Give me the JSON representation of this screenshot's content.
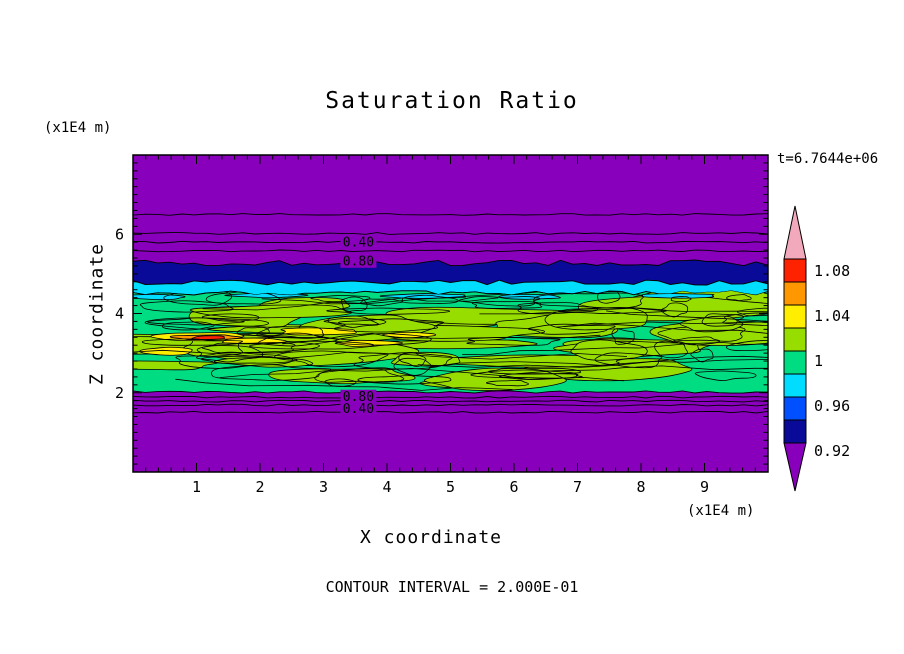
{
  "chart_data": {
    "type": "heatmap",
    "title": "Saturation Ratio",
    "xlabel": "X coordinate",
    "ylabel": "Z coordinate",
    "x_unit": "(x1E4 m)",
    "y_unit": "(x1E4 m)",
    "timestamp": "t=6.7644e+06",
    "contour_interval_label": "CONTOUR INTERVAL = 2.000E-01",
    "xlim": [
      0,
      10
    ],
    "ylim": [
      0,
      8
    ],
    "x_ticks": [
      1,
      2,
      3,
      4,
      5,
      6,
      7,
      8,
      9
    ],
    "y_ticks": [
      2,
      4,
      6
    ],
    "legend_position": "right",
    "grid": false,
    "palette": {
      "purple": "#8800bb",
      "navy": "#0a0a99",
      "blue": "#0050ff",
      "cyan": "#00ddff",
      "spring_green": "#00dc82",
      "chartreuse": "#97de00",
      "yellow": "#ffee00",
      "orange": "#ff9800",
      "red": "#ff2200",
      "pink": "#f2a9bc"
    },
    "bands": [
      {
        "name": "upper-subsaturated-region",
        "z_from": 5.28,
        "z_to": 8.0,
        "color_key": "purple",
        "approx_value": "0.2-0.8"
      },
      {
        "name": "cloud-top-dark-band",
        "z_from": 4.78,
        "z_to": 5.28,
        "color_key": "navy",
        "approx_value": "0.92"
      },
      {
        "name": "cloud-top-cyan-band",
        "z_from": 4.52,
        "z_to": 4.78,
        "color_key": "cyan",
        "approx_value": "0.96"
      },
      {
        "name": "turbulent-cloud-band",
        "z_from": 2.02,
        "z_to": 4.52,
        "color_key": "spring_green",
        "approx_value": "1.00"
      },
      {
        "name": "lower-subsaturated-region",
        "z_from": 0.0,
        "z_to": 2.02,
        "color_key": "purple",
        "approx_value": "0.2-0.8"
      }
    ],
    "contour_lines": [
      {
        "z": 6.5
      },
      {
        "z": 6.02
      },
      {
        "z": 5.8
      },
      {
        "z": 5.58
      },
      {
        "z": 1.89
      },
      {
        "z": 1.79
      },
      {
        "z": 1.69
      },
      {
        "z": 1.51
      }
    ],
    "contour_labels": [
      {
        "text": "0.40",
        "x": 3.55,
        "z": 5.8
      },
      {
        "text": "0.80",
        "x": 3.55,
        "z": 5.33
      },
      {
        "text": "0.80",
        "x": 3.55,
        "z": 1.9
      },
      {
        "text": "0.40",
        "x": 3.55,
        "z": 1.6
      }
    ],
    "texture": {
      "seed": 20,
      "mixed_band": {
        "patch_color_key": "chartreuse",
        "patch_count": 36,
        "loop_count": 58,
        "line_count": 14
      },
      "hot_spots": [
        {
          "x": 0.55,
          "z": 3.05,
          "rx": 0.45,
          "rz": 0.09,
          "color": "#ffee00"
        },
        {
          "x": 1.05,
          "z": 3.42,
          "rx": 0.8,
          "rz": 0.11,
          "color": "#ffee00"
        },
        {
          "x": 1.15,
          "z": 3.4,
          "rx": 0.5,
          "rz": 0.07,
          "color": "#ff9800"
        },
        {
          "x": 1.2,
          "z": 3.39,
          "rx": 0.28,
          "rz": 0.05,
          "color": "#ff2200"
        },
        {
          "x": 1.9,
          "z": 3.3,
          "rx": 0.55,
          "rz": 0.08,
          "color": "#ffee00"
        },
        {
          "x": 2.9,
          "z": 3.55,
          "rx": 0.6,
          "rz": 0.09,
          "color": "#ffee00"
        },
        {
          "x": 3.7,
          "z": 3.25,
          "rx": 0.5,
          "rz": 0.08,
          "color": "#ffee00"
        },
        {
          "x": 4.35,
          "z": 3.45,
          "rx": 0.4,
          "rz": 0.07,
          "color": "#ffee00"
        },
        {
          "x": 0.4,
          "z": 4.42,
          "rx": 0.5,
          "rz": 0.07,
          "color": "#00ddff"
        },
        {
          "x": 2.1,
          "z": 4.46,
          "rx": 0.6,
          "rz": 0.06,
          "color": "#00ddff"
        },
        {
          "x": 4.6,
          "z": 4.44,
          "rx": 0.7,
          "rz": 0.06,
          "color": "#00ddff"
        },
        {
          "x": 6.3,
          "z": 4.42,
          "rx": 0.5,
          "rz": 0.06,
          "color": "#00ddff"
        },
        {
          "x": 8.6,
          "z": 4.45,
          "rx": 0.6,
          "rz": 0.06,
          "color": "#00ddff"
        }
      ]
    },
    "colorbar": {
      "above_color": "#f2a9bc",
      "below_color": "#8800bb",
      "segments": [
        {
          "color": "#ff2200"
        },
        {
          "color": "#ff9800"
        },
        {
          "color": "#ffee00"
        },
        {
          "color": "#97de00"
        },
        {
          "color": "#00dc82"
        },
        {
          "color": "#00ddff"
        },
        {
          "color": "#0050ff"
        },
        {
          "color": "#0a0a99"
        }
      ],
      "labels": [
        "1.08",
        "1.04",
        "1",
        "0.96",
        "0.92"
      ]
    }
  }
}
